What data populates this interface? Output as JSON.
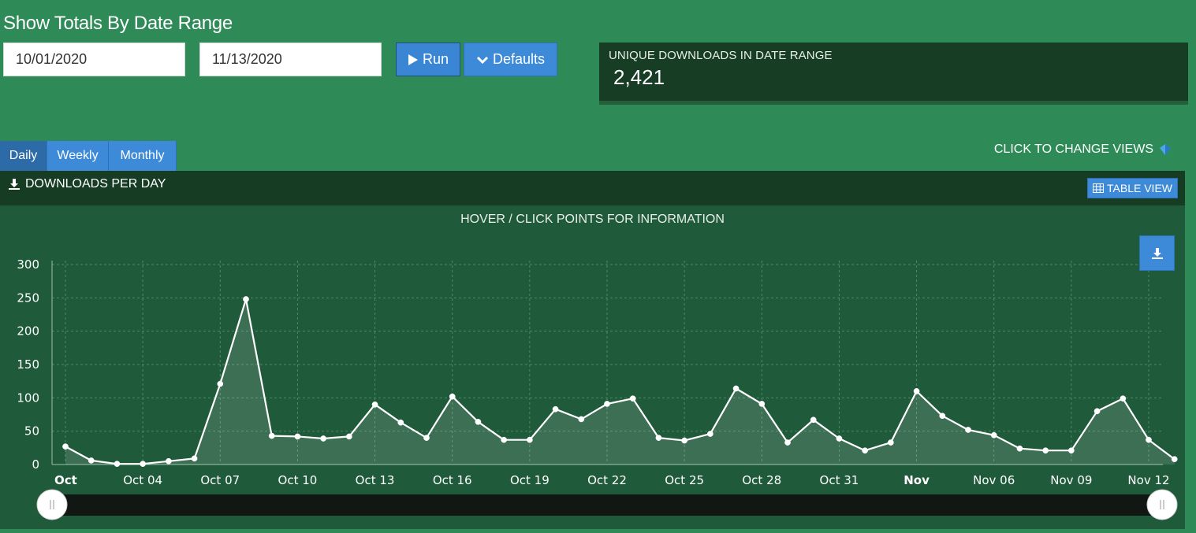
{
  "page": {
    "title": "Show Totals By Date Range",
    "start_date": "10/01/2020",
    "end_date": "11/13/2020",
    "run_label": "Run",
    "defaults_label": "Defaults"
  },
  "summary": {
    "label": "UNIQUE DOWNLOADS IN DATE RANGE",
    "value": "2,421"
  },
  "tabs": [
    {
      "label": "Daily",
      "active": true
    },
    {
      "label": "Weekly",
      "active": false
    },
    {
      "label": "Monthly",
      "active": false
    }
  ],
  "change_views_label": "CLICK TO CHANGE VIEWS",
  "chart_header": {
    "title": "DOWNLOADS PER DAY",
    "table_view_label": "TABLE VIEW"
  },
  "chart_subtitle": "HOVER / CLICK POINTS FOR INFORMATION",
  "icons": {
    "download": "download-icon",
    "play": "play-icon",
    "chevron": "chevron-down-icon",
    "table": "table-icon",
    "diamond": "gem-icon",
    "slider_handle": "slider-handle-icon"
  },
  "colors": {
    "page_bg": "#2e8b57",
    "panel_dark": "#173e25",
    "plot_bg": "#1f5a3a",
    "button": "#3d8ad8",
    "line": "#ffffff"
  },
  "chart_data": {
    "type": "area",
    "title": "",
    "xlabel": "",
    "ylabel": "",
    "ylim": [
      0,
      300
    ],
    "yticks": [
      0,
      50,
      100,
      150,
      200,
      250,
      300
    ],
    "grid": true,
    "legend": "none",
    "x_start": "2020-10-01",
    "x_end": "2020-11-12",
    "xticks": [
      {
        "label": "Oct",
        "date": "2020-10-01",
        "bold": true
      },
      {
        "label": "Oct 04",
        "date": "2020-10-04",
        "bold": false
      },
      {
        "label": "Oct 07",
        "date": "2020-10-07",
        "bold": false
      },
      {
        "label": "Oct 10",
        "date": "2020-10-10",
        "bold": false
      },
      {
        "label": "Oct 13",
        "date": "2020-10-13",
        "bold": false
      },
      {
        "label": "Oct 16",
        "date": "2020-10-16",
        "bold": false
      },
      {
        "label": "Oct 19",
        "date": "2020-10-19",
        "bold": false
      },
      {
        "label": "Oct 22",
        "date": "2020-10-22",
        "bold": false
      },
      {
        "label": "Oct 25",
        "date": "2020-10-25",
        "bold": false
      },
      {
        "label": "Oct 28",
        "date": "2020-10-28",
        "bold": false
      },
      {
        "label": "Oct 31",
        "date": "2020-10-31",
        "bold": false
      },
      {
        "label": "Nov",
        "date": "2020-11-03",
        "bold": true
      },
      {
        "label": "Nov 06",
        "date": "2020-11-06",
        "bold": false
      },
      {
        "label": "Nov 09",
        "date": "2020-11-09",
        "bold": false
      },
      {
        "label": "Nov 12",
        "date": "2020-11-12",
        "bold": false
      }
    ],
    "series": [
      {
        "points": [
          {
            "x": "2020-10-01",
            "y": 27
          },
          {
            "x": "2020-10-02",
            "y": 6
          },
          {
            "x": "2020-10-03",
            "y": 1
          },
          {
            "x": "2020-10-04",
            "y": 1
          },
          {
            "x": "2020-10-05",
            "y": 5
          },
          {
            "x": "2020-10-06",
            "y": 9
          },
          {
            "x": "2020-10-07",
            "y": 121
          },
          {
            "x": "2020-10-08",
            "y": 248
          },
          {
            "x": "2020-10-09",
            "y": 43
          },
          {
            "x": "2020-10-10",
            "y": 42
          },
          {
            "x": "2020-10-11",
            "y": 39
          },
          {
            "x": "2020-10-12",
            "y": 42
          },
          {
            "x": "2020-10-13",
            "y": 90
          },
          {
            "x": "2020-10-14",
            "y": 63
          },
          {
            "x": "2020-10-15",
            "y": 40
          },
          {
            "x": "2020-10-16",
            "y": 102
          },
          {
            "x": "2020-10-17",
            "y": 64
          },
          {
            "x": "2020-10-18",
            "y": 37
          },
          {
            "x": "2020-10-19",
            "y": 37
          },
          {
            "x": "2020-10-20",
            "y": 83
          },
          {
            "x": "2020-10-21",
            "y": 68
          },
          {
            "x": "2020-10-22",
            "y": 91
          },
          {
            "x": "2020-10-23",
            "y": 99
          },
          {
            "x": "2020-10-24",
            "y": 40
          },
          {
            "x": "2020-10-25",
            "y": 36
          },
          {
            "x": "2020-10-26",
            "y": 46
          },
          {
            "x": "2020-10-27",
            "y": 114
          },
          {
            "x": "2020-10-28",
            "y": 91
          },
          {
            "x": "2020-10-29",
            "y": 33
          },
          {
            "x": "2020-10-30",
            "y": 67
          },
          {
            "x": "2020-10-31",
            "y": 39
          },
          {
            "x": "2020-11-01",
            "y": 21
          },
          {
            "x": "2020-11-02",
            "y": 33
          },
          {
            "x": "2020-11-03",
            "y": 110
          },
          {
            "x": "2020-11-04",
            "y": 73
          },
          {
            "x": "2020-11-05",
            "y": 52
          },
          {
            "x": "2020-11-06",
            "y": 44
          },
          {
            "x": "2020-11-07",
            "y": 24
          },
          {
            "x": "2020-11-08",
            "y": 21
          },
          {
            "x": "2020-11-09",
            "y": 21
          },
          {
            "x": "2020-11-10",
            "y": 80
          },
          {
            "x": "2020-11-11",
            "y": 99
          },
          {
            "x": "2020-11-12",
            "y": 37
          },
          {
            "x": "2020-11-13",
            "y": 8
          }
        ]
      }
    ],
    "range_slider": {
      "start": "2020-10-01",
      "end": "2020-11-13"
    }
  }
}
